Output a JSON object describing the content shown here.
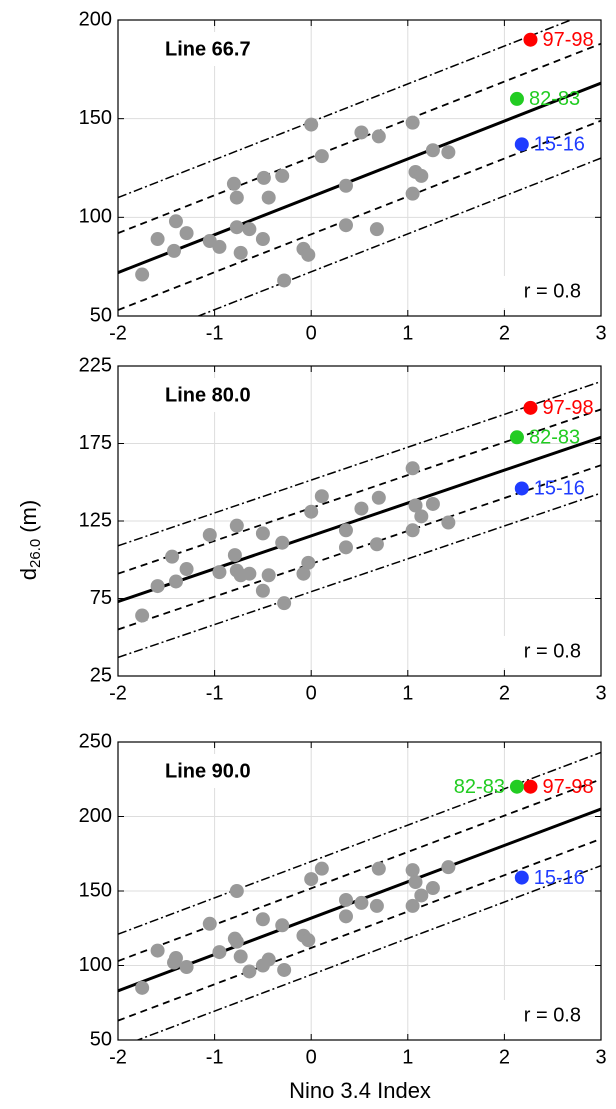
{
  "ylabel": {
    "text": "d",
    "subscript": "26.0",
    "suffix": "(m)"
  },
  "xlabel": "Nino 3.4 Index",
  "chart_data": [
    {
      "type": "scatter",
      "title": "Line 66.7",
      "annotation": "r = 0.8",
      "xlim": [
        -2,
        3
      ],
      "xticks": [
        -2,
        -1,
        0,
        1,
        2,
        3
      ],
      "ylim": [
        50,
        200
      ],
      "yticks": [
        50,
        100,
        150,
        200
      ],
      "grid": true,
      "points": {
        "color": "#999999",
        "x": [
          -1.75,
          -1.59,
          -1.42,
          -1.4,
          -1.29,
          -1.05,
          -0.95,
          -0.8,
          -0.77,
          -0.77,
          -0.73,
          -0.64,
          -0.49,
          -0.5,
          -0.44,
          -0.3,
          -0.28,
          -0.08,
          -0.03,
          0,
          0.11,
          0.36,
          0.36,
          0.52,
          0.7,
          0.68,
          1.05,
          1.05,
          1.08,
          1.14,
          1.26,
          1.42
        ],
        "values": [
          71,
          89,
          83,
          98,
          92,
          88,
          85,
          117,
          110,
          95,
          82,
          94,
          120,
          89,
          110,
          121,
          68,
          84,
          81,
          147,
          131,
          116,
          96,
          143,
          141,
          94,
          148,
          112,
          123,
          121,
          134,
          133
        ]
      },
      "highlights": [
        {
          "label": "97-98",
          "color": "#ff0000",
          "x": 2.27,
          "value": 190,
          "label_side": "right"
        },
        {
          "label": "82-83",
          "color": "#22cc22",
          "x": 2.13,
          "value": 160,
          "label_side": "right"
        },
        {
          "label": "15-16",
          "color": "#1f3cff",
          "x": 2.18,
          "value": 137,
          "label_side": "right"
        }
      ],
      "lines": [
        {
          "style": "solid",
          "x": [
            -2,
            3
          ],
          "values": [
            72,
            168
          ]
        },
        {
          "style": "dashed",
          "x": [
            -2,
            3
          ],
          "values": [
            92,
            188
          ]
        },
        {
          "style": "dashed",
          "x": [
            -2,
            3
          ],
          "values": [
            53,
            149
          ]
        },
        {
          "style": "dashdot",
          "x": [
            -2,
            3
          ],
          "values": [
            110,
            206
          ]
        },
        {
          "style": "dashdot",
          "x": [
            -2,
            3
          ],
          "values": [
            34,
            130
          ]
        }
      ]
    },
    {
      "type": "scatter",
      "title": "Line 80.0",
      "annotation": "r = 0.8",
      "xlim": [
        -2,
        3
      ],
      "xticks": [
        -2,
        -1,
        0,
        1,
        2,
        3
      ],
      "ylim": [
        25,
        225
      ],
      "yticks": [
        25,
        75,
        125,
        175,
        225
      ],
      "grid": true,
      "points": {
        "color": "#999999",
        "x": [
          -1.75,
          -1.59,
          -1.44,
          -1.4,
          -1.29,
          -1.05,
          -0.95,
          -0.77,
          -0.79,
          -0.77,
          -0.73,
          -0.64,
          -0.5,
          -0.5,
          -0.44,
          -0.3,
          -0.28,
          -0.08,
          -0.03,
          0,
          0.11,
          0.36,
          0.36,
          0.52,
          0.7,
          0.68,
          1.05,
          1.05,
          1.08,
          1.14,
          1.26,
          1.42
        ],
        "values": [
          64,
          83,
          102,
          86,
          94,
          116,
          92,
          122,
          103,
          93,
          90,
          91,
          117,
          80,
          90,
          111,
          72,
          91,
          98,
          131,
          141,
          119,
          108,
          133,
          140,
          110,
          159,
          119,
          135,
          128,
          136,
          124
        ]
      },
      "highlights": [
        {
          "label": "97-98",
          "color": "#ff0000",
          "x": 2.27,
          "value": 198,
          "label_side": "right"
        },
        {
          "label": "82-83",
          "color": "#22cc22",
          "x": 2.13,
          "value": 179,
          "label_side": "right"
        },
        {
          "label": "15-16",
          "color": "#1f3cff",
          "x": 2.18,
          "value": 146,
          "label_side": "right"
        }
      ],
      "lines": [
        {
          "style": "solid",
          "x": [
            -2,
            3
          ],
          "values": [
            73,
            179
          ]
        },
        {
          "style": "dashed",
          "x": [
            -2,
            3
          ],
          "values": [
            91,
            197
          ]
        },
        {
          "style": "dashed",
          "x": [
            -2,
            3
          ],
          "values": [
            55,
            161
          ]
        },
        {
          "style": "dashdot",
          "x": [
            -2,
            3
          ],
          "values": [
            109,
            215
          ]
        },
        {
          "style": "dashdot",
          "x": [
            -2,
            3
          ],
          "values": [
            37,
            143
          ]
        }
      ]
    },
    {
      "type": "scatter",
      "title": "Line 90.0",
      "annotation": "r = 0.8",
      "xlim": [
        -2,
        3
      ],
      "xticks": [
        -2,
        -1,
        0,
        1,
        2,
        3
      ],
      "ylim": [
        50,
        250
      ],
      "yticks": [
        50,
        100,
        150,
        200,
        250
      ],
      "grid": true,
      "points": {
        "color": "#999999",
        "x": [
          -1.75,
          -1.59,
          -1.42,
          -1.4,
          -1.29,
          -1.05,
          -0.95,
          -0.77,
          -0.79,
          -0.77,
          -0.73,
          -0.64,
          -0.5,
          -0.5,
          -0.44,
          -0.3,
          -0.28,
          -0.08,
          -0.03,
          0,
          0.11,
          0.36,
          0.36,
          0.52,
          0.7,
          0.68,
          1.05,
          1.05,
          1.08,
          1.14,
          1.26,
          1.42
        ],
        "values": [
          85,
          110,
          102,
          105,
          99,
          128,
          109,
          150,
          118,
          116,
          106,
          96,
          131,
          100,
          104,
          127,
          97,
          120,
          117,
          158,
          165,
          133,
          144,
          142,
          165,
          140,
          164,
          140,
          156,
          147,
          152,
          166
        ]
      },
      "highlights": [
        {
          "label": "97-98",
          "color": "#ff0000",
          "x": 2.27,
          "value": 220,
          "label_side": "right"
        },
        {
          "label": "82-83",
          "color": "#22cc22",
          "x": 2.13,
          "value": 220,
          "label_side": "left"
        },
        {
          "label": "15-16",
          "color": "#1f3cff",
          "x": 2.18,
          "value": 159,
          "label_side": "right"
        }
      ],
      "lines": [
        {
          "style": "solid",
          "x": [
            -2,
            3
          ],
          "values": [
            83,
            205
          ]
        },
        {
          "style": "dashed",
          "x": [
            -2,
            3
          ],
          "values": [
            103,
            225
          ]
        },
        {
          "style": "dashed",
          "x": [
            -2,
            3
          ],
          "values": [
            63,
            185
          ]
        },
        {
          "style": "dashdot",
          "x": [
            -2,
            3
          ],
          "values": [
            121,
            243
          ]
        },
        {
          "style": "dashdot",
          "x": [
            -2,
            3
          ],
          "values": [
            45,
            167
          ]
        }
      ]
    }
  ]
}
